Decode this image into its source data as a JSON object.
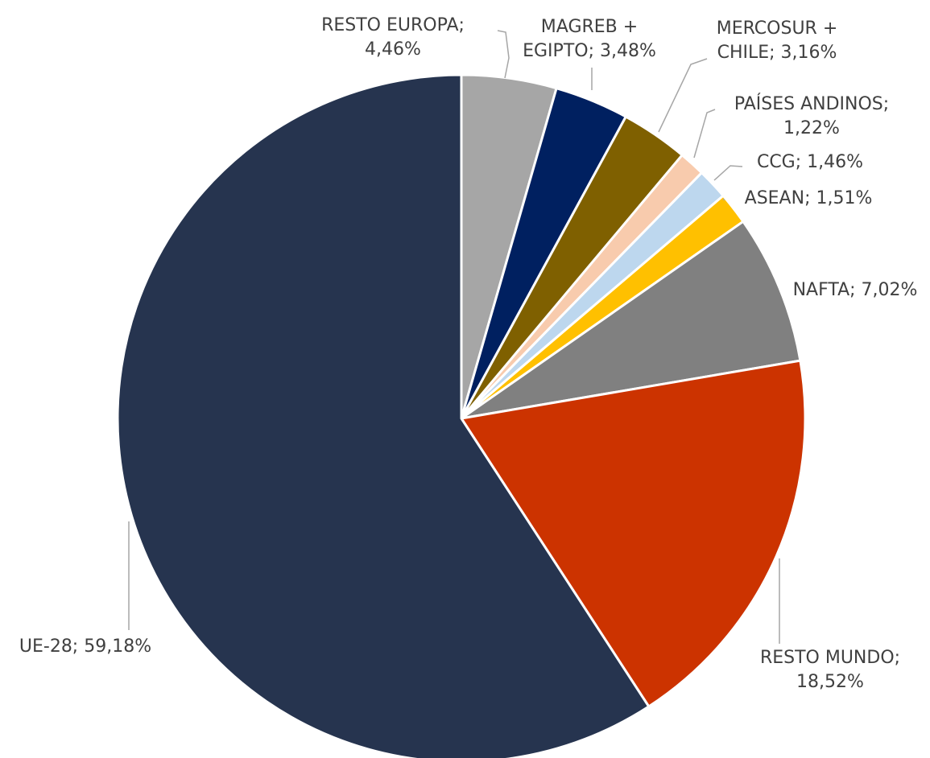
{
  "chart_data": {
    "type": "pie",
    "start_angle_deg": 0,
    "direction": "clockwise",
    "slices": [
      {
        "label": "RESTO EUROPA",
        "value": 4.46,
        "color": "#a6a6a6",
        "label_lines": [
          "RESTO EUROPA;",
          "4,46%"
        ]
      },
      {
        "label": "MAGREB + EGIPTO",
        "value": 3.48,
        "color": "#002060",
        "label_lines": [
          "MAGREB +",
          "EGIPTO; 3,48%"
        ]
      },
      {
        "label": "MERCOSUR + CHILE",
        "value": 3.16,
        "color": "#7f6000",
        "label_lines": [
          "MERCOSUR +",
          "CHILE; 3,16%"
        ]
      },
      {
        "label": "PAÍSES ANDINOS",
        "value": 1.22,
        "color": "#f8cbad",
        "label_lines": [
          "PAÍSES ANDINOS;",
          "1,22%"
        ]
      },
      {
        "label": "CCG",
        "value": 1.46,
        "color": "#bdd7ee",
        "label_lines": [
          "CCG; 1,46%"
        ]
      },
      {
        "label": "ASEAN",
        "value": 1.51,
        "color": "#ffc000",
        "label_lines": [
          "ASEAN; 1,51%"
        ]
      },
      {
        "label": "NAFTA",
        "value": 7.02,
        "color": "#808080",
        "label_lines": [
          "NAFTA; 7,02%"
        ]
      },
      {
        "label": "RESTO MUNDO",
        "value": 18.52,
        "color": "#cc3300",
        "label_lines": [
          "RESTO MUNDO;",
          "18,52%"
        ]
      },
      {
        "label": "UE-28",
        "value": 59.18,
        "color": "#26344f",
        "label_lines": [
          "UE-28; 59,18%"
        ]
      }
    ]
  }
}
